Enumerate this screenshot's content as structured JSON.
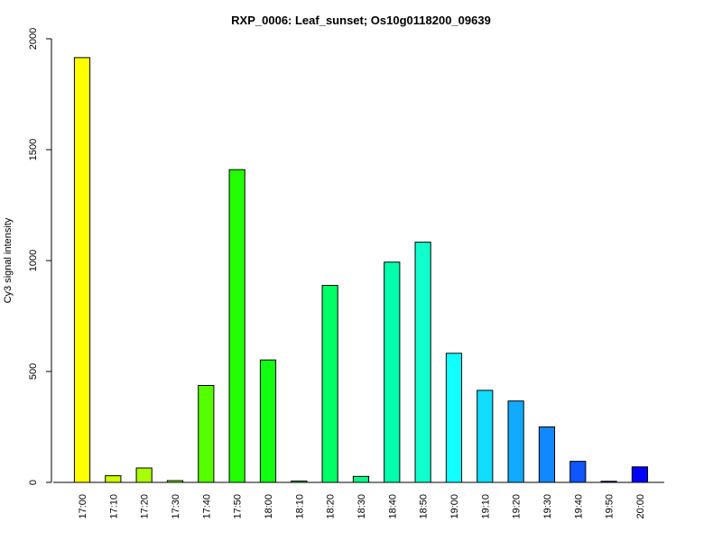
{
  "chart_data": {
    "type": "bar",
    "title": "RXP_0006: Leaf_sunset; Os10g0118200_09639",
    "xlabel": "",
    "ylabel": "Cy3 signal intensity",
    "ylim": [
      0,
      2000
    ],
    "yticks": [
      0,
      500,
      1000,
      1500,
      2000
    ],
    "categories": [
      "17:00",
      "17:10",
      "17:20",
      "17:30",
      "17:40",
      "17:50",
      "18:00",
      "18:10",
      "18:20",
      "18:30",
      "18:40",
      "18:50",
      "19:00",
      "19:10",
      "19:20",
      "19:30",
      "19:40",
      "19:50",
      "20:00"
    ],
    "values": [
      1915,
      30,
      65,
      8,
      437,
      1410,
      552,
      6,
      888,
      27,
      993,
      1083,
      582,
      415,
      367,
      250,
      95,
      5,
      70
    ],
    "colors": [
      "#FFFF00",
      "#CCFF00",
      "#AAFF00",
      "#77FF00",
      "#55FF00",
      "#22FF00",
      "#11FF11",
      "#00FF33",
      "#00FF66",
      "#00FF88",
      "#00FFAA",
      "#11FFCC",
      "#11FFFF",
      "#11DDFF",
      "#11AAFF",
      "#1188FF",
      "#1155FF",
      "#0022FF",
      "#0000FF"
    ],
    "grid": false,
    "legend": "none"
  }
}
